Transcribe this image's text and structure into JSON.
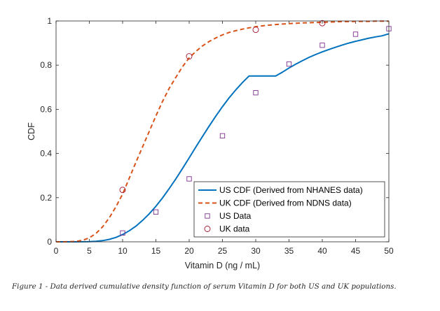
{
  "figure": {
    "caption": "Figure 1 - Data derived cumulative density function of serum Vitamin D for both US and UK populations."
  },
  "chart_data": {
    "type": "line",
    "title": "",
    "xlabel": "Vitamin D (ng / mL)",
    "ylabel": "CDF",
    "xlim": [
      0,
      50
    ],
    "ylim": [
      0,
      1
    ],
    "xticks": [
      0,
      5,
      10,
      15,
      20,
      25,
      30,
      35,
      40,
      45,
      50
    ],
    "yticks": [
      0,
      0.2,
      0.4,
      0.6,
      0.8,
      1
    ],
    "ytick_labels": [
      "0",
      "0.2",
      "0.4",
      "0.6",
      "0.8",
      "1"
    ],
    "grid": false,
    "legend_position": "bottom-right",
    "colors": {
      "us": "#0072BD",
      "uk": "#D95319",
      "us_data": "#7E2F8E",
      "uk_data": "#A2142F"
    },
    "series": [
      {
        "name": "US CDF (Derived from NHANES data)",
        "kind": "line",
        "style": "solid",
        "color": "#0072BD",
        "x": [
          0,
          1,
          2,
          3,
          4,
          5,
          6,
          7,
          8,
          9,
          10,
          11,
          12,
          13,
          14,
          15,
          16,
          17,
          18,
          19,
          20,
          21,
          22,
          23,
          24,
          25,
          26,
          27,
          28,
          29,
          30,
          31,
          32,
          33,
          34,
          35,
          36,
          37,
          38,
          39,
          40,
          41,
          42,
          43,
          44,
          45,
          46,
          47,
          48,
          49,
          50
        ],
        "y": [
          0,
          0,
          0,
          0,
          0.0003,
          0.001,
          0.0025,
          0.0055,
          0.011,
          0.02,
          0.033,
          0.05,
          0.071,
          0.097,
          0.127,
          0.161,
          0.199,
          0.241,
          0.285,
          0.332,
          0.38,
          0.429,
          0.477,
          0.524,
          0.569,
          0.612,
          0.652,
          0.688,
          0.721,
          0.751,
          0.678,
          0.703,
          0.726,
          0.748,
          0.768,
          0.787,
          0.804,
          0.82,
          0.835,
          0.848,
          0.86,
          0.871,
          0.881,
          0.891,
          0.9,
          0.908,
          0.915,
          0.922,
          0.928,
          0.933,
          0.942
        ]
      },
      {
        "name": "UK CDF (Derived from NDNS data)",
        "kind": "line",
        "style": "dashed",
        "color": "#D95319",
        "x": [
          0,
          1,
          2,
          3,
          4,
          5,
          6,
          7,
          8,
          9,
          10,
          11,
          12,
          13,
          14,
          15,
          16,
          17,
          18,
          19,
          20,
          21,
          22,
          23,
          24,
          25,
          26,
          27,
          28,
          29,
          30,
          31,
          32,
          33,
          34,
          35,
          36,
          37,
          38,
          39,
          40,
          41,
          42,
          43,
          44,
          45,
          46,
          47,
          48,
          49,
          50
        ],
        "y": [
          0,
          0,
          0.0005,
          0.002,
          0.007,
          0.018,
          0.038,
          0.068,
          0.109,
          0.159,
          0.216,
          0.288,
          0.36,
          0.43,
          0.5,
          0.57,
          0.636,
          0.695,
          0.745,
          0.793,
          0.833,
          0.862,
          0.887,
          0.907,
          0.923,
          0.937,
          0.948,
          0.956,
          0.963,
          0.969,
          0.974,
          0.978,
          0.981,
          0.984,
          0.986,
          0.988,
          0.99,
          0.991,
          0.992,
          0.993,
          0.994,
          0.995,
          0.996,
          0.997,
          0.997,
          0.998,
          0.998,
          0.998,
          0.999,
          0.999,
          0.999
        ]
      },
      {
        "name": "US Data",
        "kind": "scatter",
        "marker": "square",
        "color": "#7E2F8E",
        "x": [
          10,
          15,
          20,
          25,
          30,
          35,
          40,
          45,
          50
        ],
        "y": [
          0.04,
          0.135,
          0.285,
          0.48,
          0.675,
          0.805,
          0.89,
          0.94,
          0.965
        ]
      },
      {
        "name": "UK data",
        "kind": "scatter",
        "marker": "circle",
        "color": "#A2142F",
        "x": [
          10,
          20,
          30,
          40
        ],
        "y": [
          0.235,
          0.84,
          0.96,
          0.99
        ]
      }
    ]
  }
}
